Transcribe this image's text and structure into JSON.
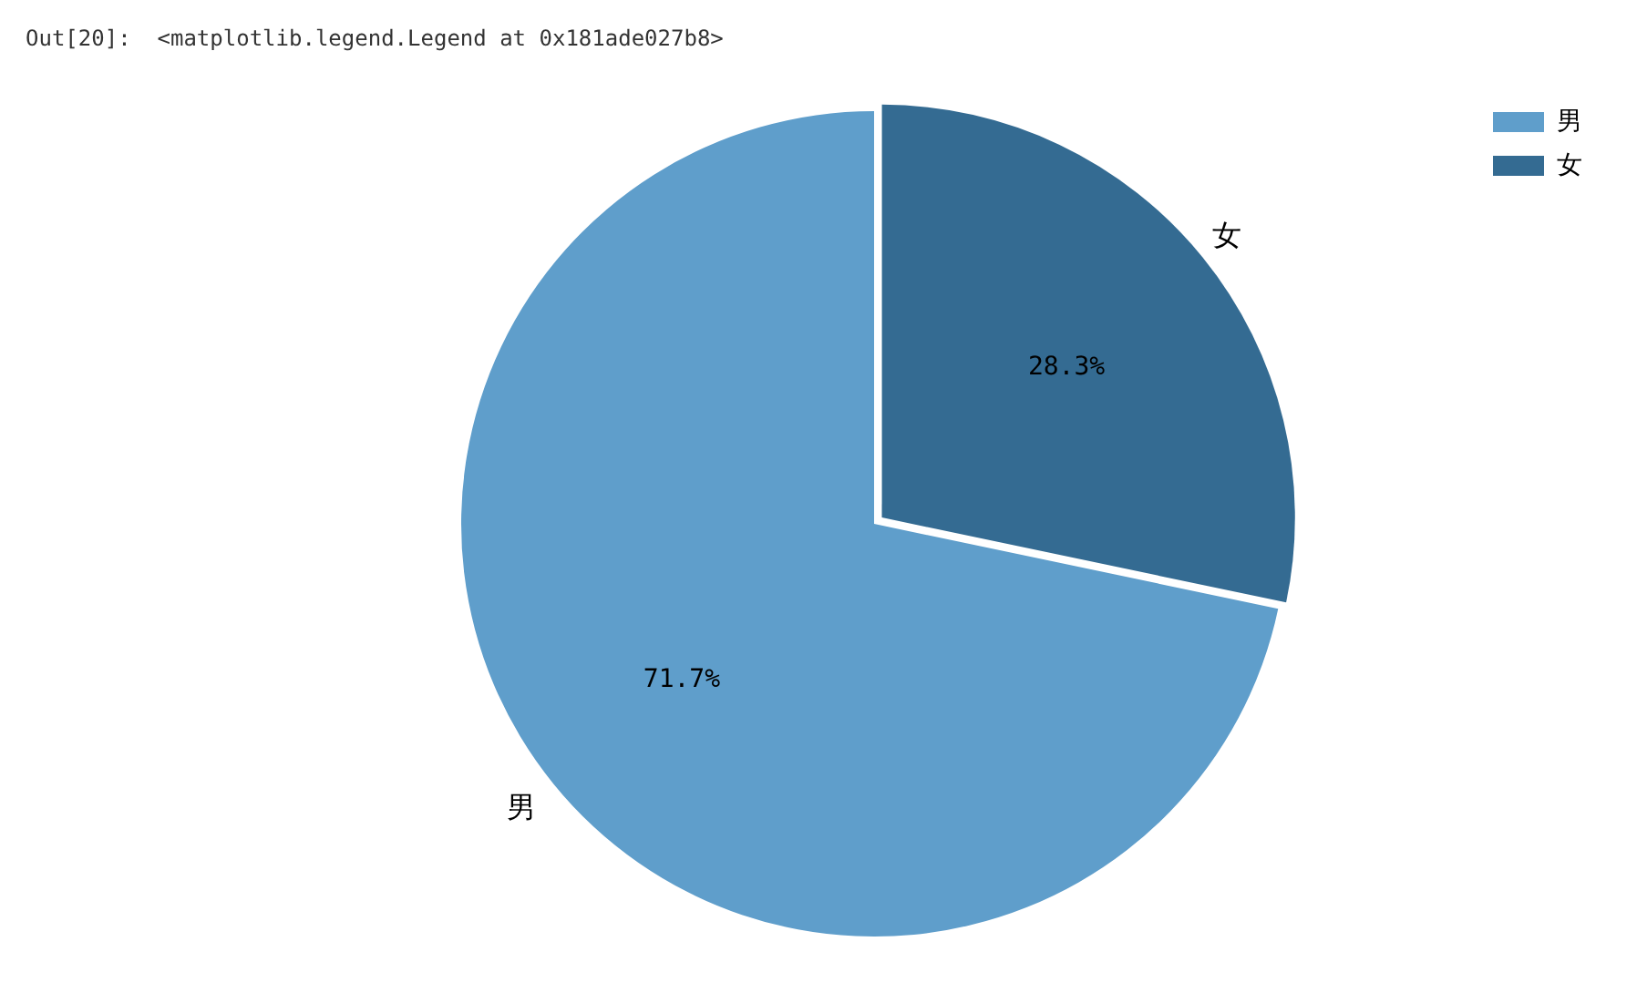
{
  "chart_data": {
    "type": "pie",
    "categories": [
      "男",
      "女"
    ],
    "values": [
      71.7,
      28.3
    ],
    "colors": [
      "#5f9ecb",
      "#346b92"
    ],
    "value_labels": [
      "71.7%",
      "28.3%"
    ],
    "legend": "top right",
    "annotations": [
      "Out[20]:  <matplotlib.legend.Legend at 0x181ade027b8>"
    ]
  }
}
